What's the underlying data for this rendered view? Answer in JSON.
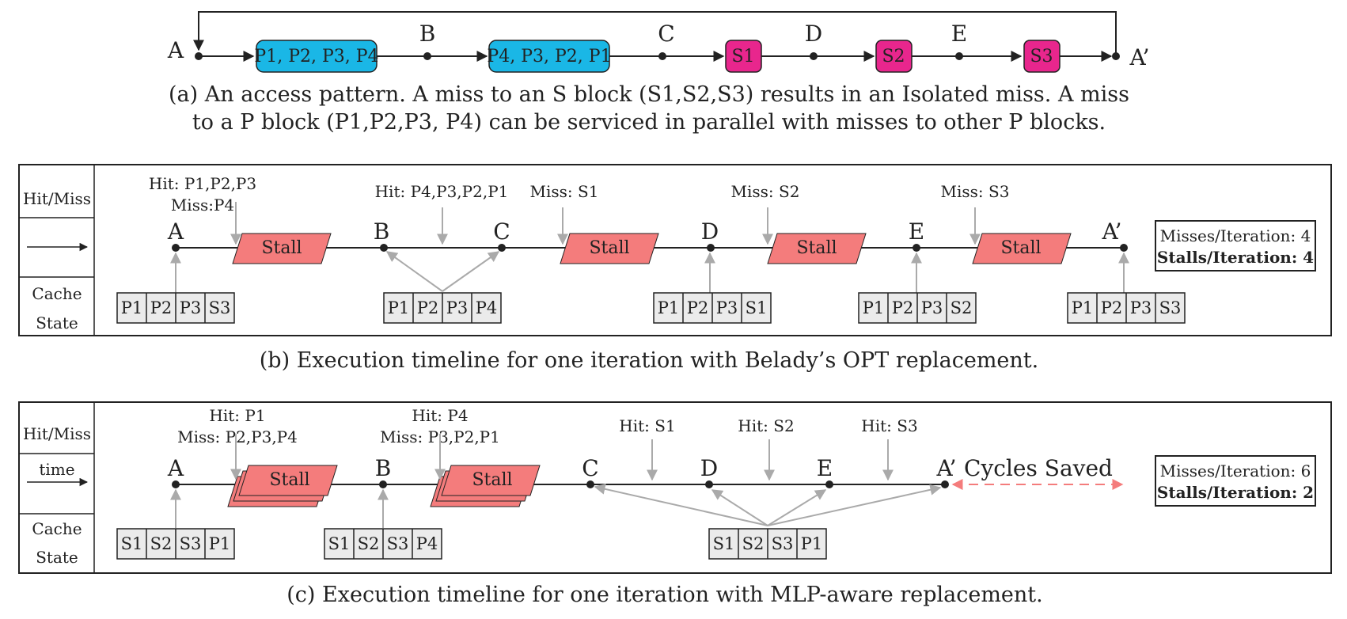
{
  "panel_a": {
    "nodes": [
      "A",
      "B",
      "C",
      "D",
      "E",
      "A’"
    ],
    "blocks": [
      "P1, P2, P3, P4",
      "P4, P3, P2, P1",
      "S1",
      "S2",
      "S3"
    ],
    "colors": {
      "p_block": "#1ab7e6",
      "s_block": "#e8268d",
      "stall": "#f47c7c"
    },
    "caption_line1": "(a) An access pattern. A miss to an S block (S1,S2,S3) results in an Isolated miss. A miss",
    "caption_line2": "to a P block (P1,P2,P3, P4) can be serviced in parallel with misses to other P blocks."
  },
  "panel_b": {
    "side_hitmiss": "Hit/Miss",
    "side_cache1": "Cache",
    "side_cache2": "State",
    "nodes": [
      "A",
      "B",
      "C",
      "D",
      "E",
      "A’"
    ],
    "events": [
      {
        "line1": "Hit: P1,P2,P3",
        "line2": "Miss:P4"
      },
      {
        "line1": "Hit: P4,P3,P2,P1"
      },
      {
        "line1": "Miss: S1"
      },
      {
        "line1": "Miss: S2"
      },
      {
        "line1": "Miss: S3"
      }
    ],
    "stall_label": "Stall",
    "cache_states": [
      [
        "P1",
        "P2",
        "P3",
        "S3"
      ],
      [
        "P1",
        "P2",
        "P3",
        "P4"
      ],
      [
        "P1",
        "P2",
        "P3",
        "S1"
      ],
      [
        "P1",
        "P2",
        "P3",
        "S2"
      ],
      [
        "P1",
        "P2",
        "P3",
        "S3"
      ]
    ],
    "stats_misses": "Misses/Iteration: 4",
    "stats_stalls": "Stalls/Iteration: 4",
    "caption": "(b) Execution timeline for one iteration with Belady’s OPT replacement."
  },
  "panel_c": {
    "side_hitmiss": "Hit/Miss",
    "side_time": "time",
    "side_cache1": "Cache",
    "side_cache2": "State",
    "nodes": [
      "A",
      "B",
      "C",
      "D",
      "E",
      "A’"
    ],
    "events": [
      {
        "line1": "Hit: P1",
        "line2": "Miss: P2,P3,P4"
      },
      {
        "line1": "Hit: P4",
        "line2": "Miss: P3,P2,P1"
      },
      {
        "line1": "Hit: S1"
      },
      {
        "line1": "Hit: S2"
      },
      {
        "line1": "Hit: S3"
      }
    ],
    "stall_label": "Stall",
    "cycles_saved": "Cycles Saved",
    "cache_states": [
      [
        "S1",
        "S2",
        "S3",
        "P1"
      ],
      [
        "S1",
        "S2",
        "S3",
        "P4"
      ],
      [
        "S1",
        "S2",
        "S3",
        "P1"
      ]
    ],
    "stats_misses": "Misses/Iteration: 6",
    "stats_stalls": "Stalls/Iteration: 2",
    "caption": "(c) Execution timeline for one iteration with MLP-aware replacement."
  }
}
